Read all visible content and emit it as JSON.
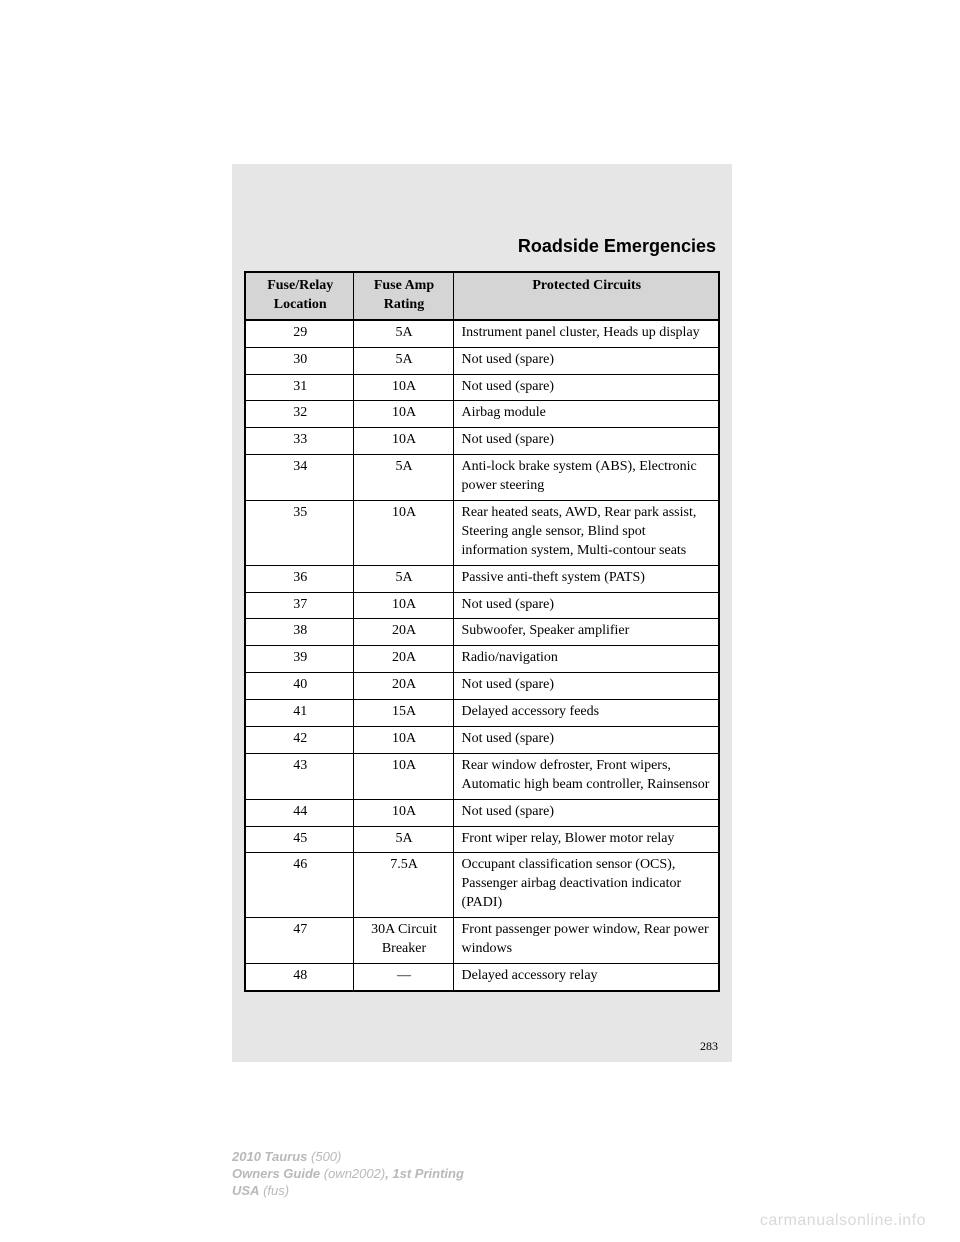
{
  "section_title": "Roadside Emergencies",
  "table": {
    "headers": [
      "Fuse/Relay Location",
      "Fuse Amp Rating",
      "Protected Circuits"
    ],
    "rows": [
      {
        "loc": "29",
        "amp": "5A",
        "desc": "Instrument panel cluster, Heads up display"
      },
      {
        "loc": "30",
        "amp": "5A",
        "desc": "Not used (spare)"
      },
      {
        "loc": "31",
        "amp": "10A",
        "desc": "Not used (spare)"
      },
      {
        "loc": "32",
        "amp": "10A",
        "desc": "Airbag module"
      },
      {
        "loc": "33",
        "amp": "10A",
        "desc": "Not used (spare)"
      },
      {
        "loc": "34",
        "amp": "5A",
        "desc": "Anti-lock brake system (ABS), Electronic power steering"
      },
      {
        "loc": "35",
        "amp": "10A",
        "desc": "Rear heated seats, AWD, Rear park assist, Steering angle sensor, Blind spot information system, Multi-contour seats"
      },
      {
        "loc": "36",
        "amp": "5A",
        "desc": "Passive anti-theft system (PATS)"
      },
      {
        "loc": "37",
        "amp": "10A",
        "desc": "Not used (spare)"
      },
      {
        "loc": "38",
        "amp": "20A",
        "desc": "Subwoofer, Speaker amplifier"
      },
      {
        "loc": "39",
        "amp": "20A",
        "desc": "Radio/navigation"
      },
      {
        "loc": "40",
        "amp": "20A",
        "desc": "Not used (spare)"
      },
      {
        "loc": "41",
        "amp": "15A",
        "desc": "Delayed accessory feeds"
      },
      {
        "loc": "42",
        "amp": "10A",
        "desc": "Not used (spare)"
      },
      {
        "loc": "43",
        "amp": "10A",
        "desc": "Rear window defroster, Front wipers, Automatic high beam controller, Rainsensor"
      },
      {
        "loc": "44",
        "amp": "10A",
        "desc": "Not used (spare)"
      },
      {
        "loc": "45",
        "amp": "5A",
        "desc": "Front wiper relay, Blower motor relay"
      },
      {
        "loc": "46",
        "amp": "7.5A",
        "desc": "Occupant classification sensor (OCS), Passenger airbag deactivation indicator (PADI)"
      },
      {
        "loc": "47",
        "amp": "30A Circuit Breaker",
        "desc": "Front passenger power window, Rear power windows"
      },
      {
        "loc": "48",
        "amp": "—",
        "desc": "Delayed accessory relay"
      }
    ]
  },
  "page_number": "283",
  "footer": {
    "line1_bold": "2010 Taurus",
    "line1_rest": " (500)",
    "line2_a": "Owners Guide",
    "line2_b": " (own2002)",
    "line2_c": ", 1st Printing",
    "line3_a": "USA",
    "line3_b": " (fus)"
  },
  "watermark": "carmanualsonline.info",
  "style": {
    "page_bg": "#ffffff",
    "band_bg": "#e6e6e6",
    "table_bg": "#ffffff",
    "header_bg": "#d5d5d5",
    "border_color": "#000000",
    "text_color": "#000000",
    "footer_color": "#b9b9b9",
    "watermark_color": "#d9d9d9",
    "section_title_fontsize": 18,
    "body_fontsize": 14
  }
}
